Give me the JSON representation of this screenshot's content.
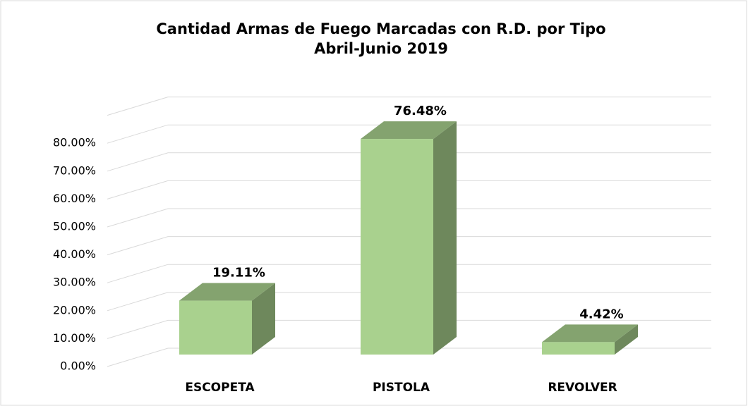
{
  "chart_data": {
    "type": "bar3d",
    "title": "Cantidad Armas de Fuego Marcadas con R.D. por Tipo",
    "subtitle": "Abril-Junio 2019",
    "categories": [
      "ESCOPETA",
      "PISTOLA",
      "REVOLVER"
    ],
    "values": [
      19.11,
      76.48,
      4.42
    ],
    "value_labels": [
      "19.11%",
      "76.48%",
      "4.42%"
    ],
    "color": "#a9d18e",
    "ylim": [
      0,
      90
    ],
    "yticks": [
      {
        "value": 0,
        "label": "0.00%"
      },
      {
        "value": 10,
        "label": "10.00%"
      },
      {
        "value": 20,
        "label": "20.00%"
      },
      {
        "value": 30,
        "label": "30.00%"
      },
      {
        "value": 40,
        "label": "40.00%"
      },
      {
        "value": 50,
        "label": "50.00%"
      },
      {
        "value": 60,
        "label": "60.00%"
      },
      {
        "value": 70,
        "label": "70.00%"
      },
      {
        "value": 80,
        "label": "80.00%"
      }
    ],
    "grid": true
  }
}
